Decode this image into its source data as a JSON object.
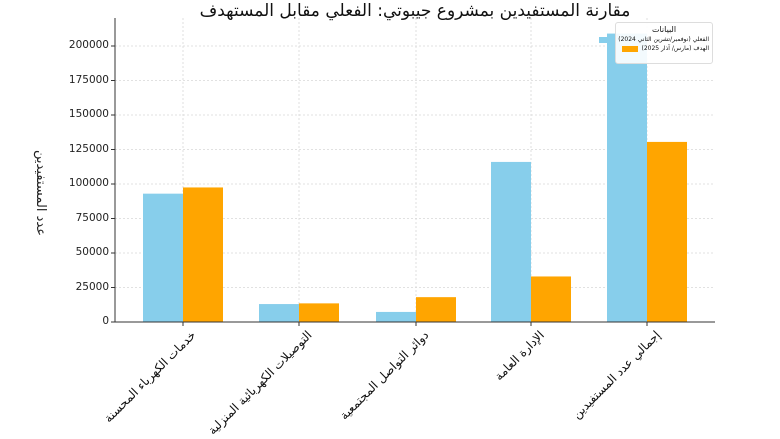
{
  "chart_data": {
    "type": "bar",
    "title": "مقارنة المستفيدين بمشروع جيبوتي: الفعلي مقابل المستهدف",
    "xlabel": "",
    "ylabel": "عدد المستفيدين",
    "categories": [
      "خدمات الكهرباء المحسنة",
      "التوصيلات الكهربائية المنزلية",
      "دوائر التواصل المجتمعية",
      "الإدارة العامة",
      "إجمالي عدد المستفيدين"
    ],
    "series": [
      {
        "name": "الفعلي (نوفمبر/تشرين الثاني 2024)",
        "color": "#87CEEB",
        "values": [
          93000,
          13000,
          7300,
          116000,
          209000
        ]
      },
      {
        "name": "الهدف (مارس/ آذار 2025)",
        "color": "#FFA500",
        "values": [
          97500,
          13500,
          18000,
          33000,
          130500
        ]
      }
    ],
    "ylim": [
      0,
      220000
    ],
    "yticks": [
      0,
      25000,
      50000,
      75000,
      100000,
      125000,
      150000,
      175000,
      200000
    ],
    "grid": true,
    "legend": {
      "title": "البيانات",
      "position": "upper right"
    }
  }
}
